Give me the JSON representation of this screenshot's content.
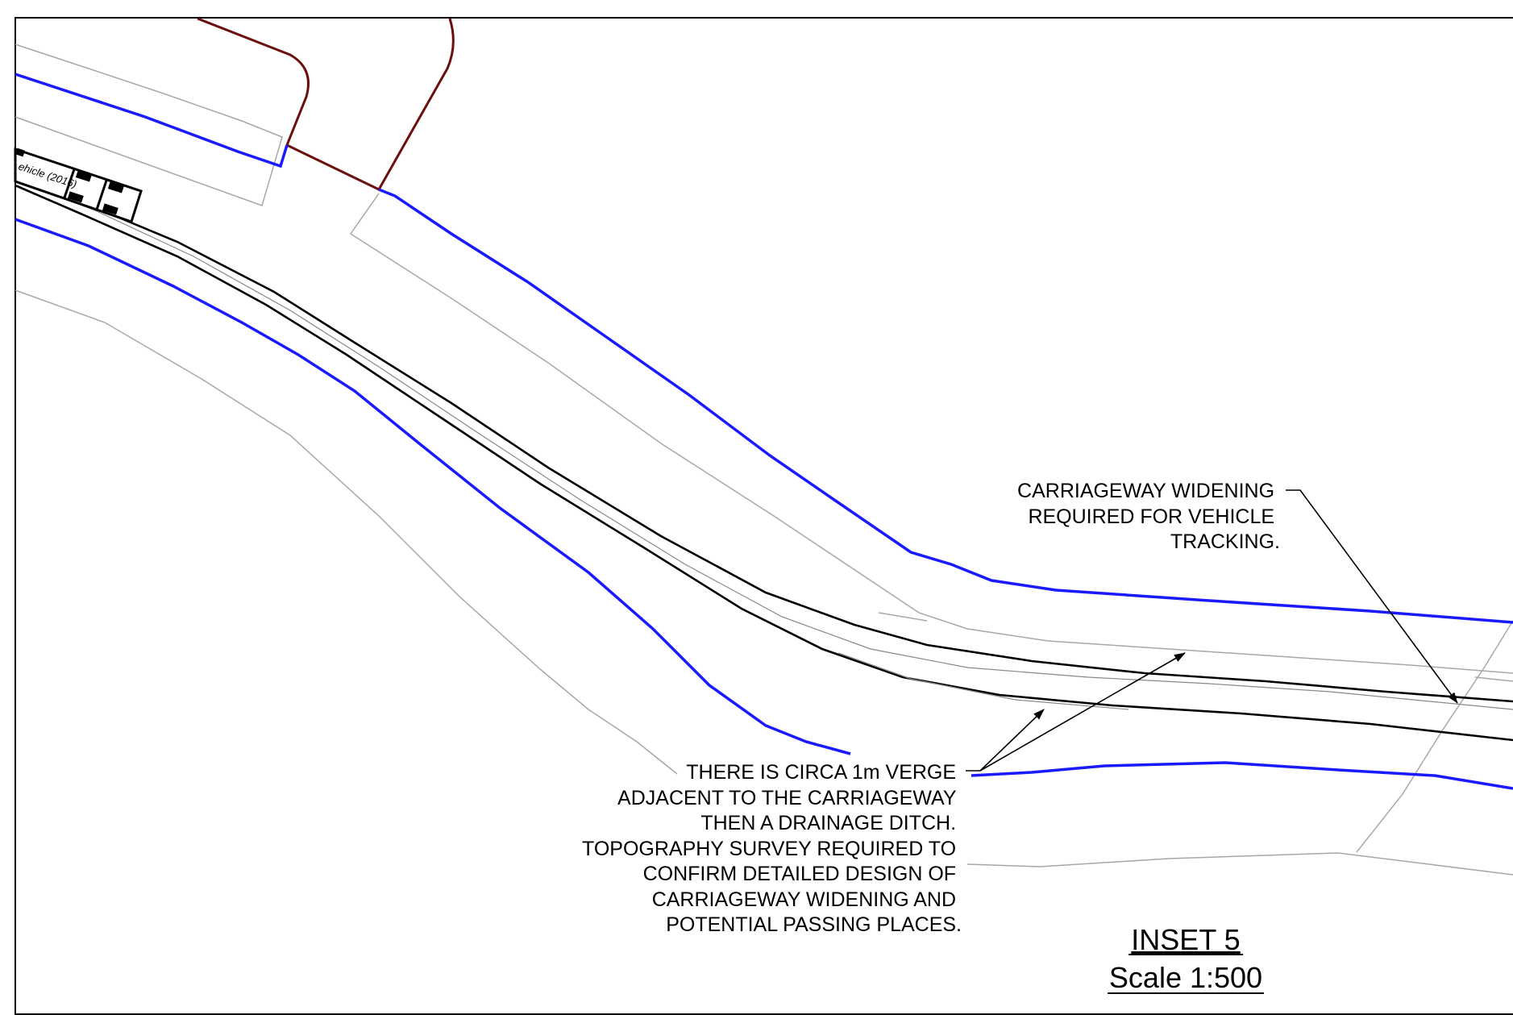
{
  "drawing": {
    "vehicle_label": "ehicle (2016)",
    "note_widening": {
      "lines": [
        "CARRIAGEWAY WIDENING",
        "REQUIRED FOR VEHICLE",
        "TRACKING."
      ]
    },
    "note_verge": {
      "lines": [
        "THERE IS CIRCA 1m VERGE",
        "ADJACENT TO THE CARRIAGEWAY",
        "THEN A DRAINAGE DITCH.",
        "TOPOGRAPHY SURVEY REQUIRED TO",
        "CONFIRM DETAILED DESIGN OF",
        "CARRIAGEWAY WIDENING AND",
        "POTENTIAL PASSING PLACES."
      ]
    },
    "inset_title": "INSET 5",
    "inset_scale": "Scale 1:500",
    "colors": {
      "boundary_blue": "#1a1aff",
      "ownership_line": "#6b0f0f",
      "carriageway": "#000000",
      "survey_grey": "#a8a8a8"
    }
  }
}
